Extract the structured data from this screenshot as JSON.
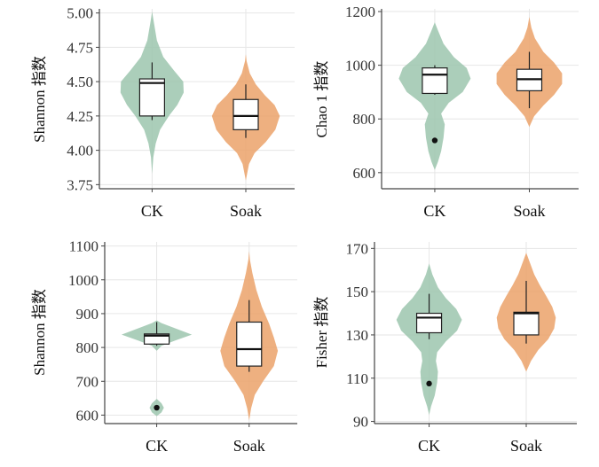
{
  "colors": {
    "CK": "#9cc5ae",
    "Soak": "#eba26a",
    "grid": "#e6e6e6",
    "axis": "#444444"
  },
  "chart_data": [
    {
      "type": "violin",
      "ylabel": "Shannon 指数",
      "categories": [
        "CK",
        "Soak"
      ],
      "yticks": [
        3.75,
        4.0,
        4.25,
        4.5,
        4.75,
        5.0
      ],
      "tick_labels": [
        "3.75",
        "4.00",
        "4.25",
        "4.50",
        "4.75",
        "5.00"
      ],
      "ylim": [
        3.72,
        5.03
      ],
      "series": [
        {
          "name": "CK",
          "box": {
            "min": 4.22,
            "q1": 4.25,
            "median": 4.49,
            "q3": 4.52,
            "max": 4.64
          },
          "outliers": [],
          "density": [
            [
              3.83,
              0.0
            ],
            [
              3.95,
              0.03
            ],
            [
              4.05,
              0.09
            ],
            [
              4.15,
              0.2
            ],
            [
              4.25,
              0.42
            ],
            [
              4.33,
              0.63
            ],
            [
              4.42,
              0.79
            ],
            [
              4.5,
              0.78
            ],
            [
              4.58,
              0.55
            ],
            [
              4.68,
              0.28
            ],
            [
              4.8,
              0.12
            ],
            [
              4.92,
              0.05
            ],
            [
              5.01,
              0.0
            ]
          ]
        },
        {
          "name": "Soak",
          "box": {
            "min": 4.09,
            "q1": 4.15,
            "median": 4.25,
            "q3": 4.37,
            "max": 4.48
          },
          "outliers": [],
          "density": [
            [
              3.78,
              0.0
            ],
            [
              3.9,
              0.08
            ],
            [
              3.98,
              0.22
            ],
            [
              4.06,
              0.5
            ],
            [
              4.15,
              0.74
            ],
            [
              4.25,
              0.85
            ],
            [
              4.33,
              0.72
            ],
            [
              4.4,
              0.48
            ],
            [
              4.48,
              0.25
            ],
            [
              4.56,
              0.1
            ],
            [
              4.65,
              0.02
            ],
            [
              4.7,
              0.0
            ]
          ]
        }
      ]
    },
    {
      "type": "violin",
      "ylabel": "Chao 1 指数",
      "categories": [
        "CK",
        "Soak"
      ],
      "yticks": [
        600,
        800,
        1000,
        1200
      ],
      "tick_labels": [
        "600",
        "800",
        "1000",
        "1200"
      ],
      "ylim": [
        540,
        1210
      ],
      "series": [
        {
          "name": "CK",
          "box": {
            "min": 890,
            "q1": 895,
            "median": 965,
            "q3": 990,
            "max": 1000
          },
          "outliers": [
            720
          ],
          "density": [
            [
              610,
              0.0
            ],
            [
              640,
              0.08
            ],
            [
              680,
              0.16
            ],
            [
              730,
              0.22
            ],
            [
              780,
              0.25
            ],
            [
              820,
              0.16
            ],
            [
              860,
              0.35
            ],
            [
              900,
              0.7
            ],
            [
              950,
              0.9
            ],
            [
              990,
              0.8
            ],
            [
              1030,
              0.48
            ],
            [
              1080,
              0.22
            ],
            [
              1130,
              0.08
            ],
            [
              1160,
              0.0
            ]
          ]
        },
        {
          "name": "Soak",
          "box": {
            "min": 840,
            "q1": 905,
            "median": 948,
            "q3": 985,
            "max": 1050
          },
          "outliers": [],
          "density": [
            [
              770,
              0.0
            ],
            [
              810,
              0.12
            ],
            [
              850,
              0.35
            ],
            [
              890,
              0.62
            ],
            [
              930,
              0.82
            ],
            [
              970,
              0.82
            ],
            [
              1010,
              0.62
            ],
            [
              1050,
              0.35
            ],
            [
              1100,
              0.14
            ],
            [
              1140,
              0.05
            ],
            [
              1180,
              0.0
            ]
          ]
        }
      ]
    },
    {
      "type": "violin",
      "ylabel": "Shannon 指数",
      "categories": [
        "CK",
        "Soak"
      ],
      "yticks": [
        600,
        700,
        800,
        900,
        1000,
        1100
      ],
      "tick_labels": [
        "600",
        "700",
        "800",
        "900",
        "1000",
        "1100"
      ],
      "ylim": [
        575,
        1112
      ],
      "series": [
        {
          "name": "CK",
          "box": {
            "min": 805,
            "q1": 810,
            "median": 835,
            "q3": 840,
            "max": 875
          },
          "outliers": [
            622
          ],
          "density": [
            [
              597,
              0.0
            ],
            [
              608,
              0.12
            ],
            [
              622,
              0.18
            ],
            [
              635,
              0.12
            ],
            [
              648,
              0.0
            ],
            [
              790,
              0.0
            ],
            [
              805,
              0.12
            ],
            [
              820,
              0.45
            ],
            [
              838,
              0.88
            ],
            [
              855,
              0.5
            ],
            [
              872,
              0.12
            ],
            [
              880,
              0.0
            ]
          ]
        },
        {
          "name": "Soak",
          "box": {
            "min": 728,
            "q1": 745,
            "median": 795,
            "q3": 875,
            "max": 940
          },
          "outliers": [],
          "density": [
            [
              585,
              0.0
            ],
            [
              620,
              0.05
            ],
            [
              660,
              0.14
            ],
            [
              700,
              0.35
            ],
            [
              745,
              0.62
            ],
            [
              790,
              0.72
            ],
            [
              830,
              0.62
            ],
            [
              870,
              0.5
            ],
            [
              920,
              0.32
            ],
            [
              970,
              0.18
            ],
            [
              1020,
              0.08
            ],
            [
              1060,
              0.02
            ],
            [
              1085,
              0.0
            ]
          ]
        }
      ]
    },
    {
      "type": "violin",
      "ylabel": "Fisher 指数",
      "categories": [
        "CK",
        "Soak"
      ],
      "yticks": [
        90,
        110,
        130,
        150,
        170
      ],
      "tick_labels": [
        "90",
        "110",
        "130",
        "150",
        "170"
      ],
      "ylim": [
        89,
        173
      ],
      "series": [
        {
          "name": "CK",
          "box": {
            "min": 128,
            "q1": 131,
            "median": 138,
            "q3": 140,
            "max": 149
          },
          "outliers": [
            107.5
          ],
          "density": [
            [
              93,
              0.0
            ],
            [
              97,
              0.05
            ],
            [
              102,
              0.14
            ],
            [
              108,
              0.2
            ],
            [
              113,
              0.22
            ],
            [
              118,
              0.17
            ],
            [
              122,
              0.2
            ],
            [
              127,
              0.42
            ],
            [
              132,
              0.7
            ],
            [
              137,
              0.82
            ],
            [
              142,
              0.68
            ],
            [
              147,
              0.42
            ],
            [
              152,
              0.22
            ],
            [
              158,
              0.08
            ],
            [
              163,
              0.0
            ]
          ]
        },
        {
          "name": "Soak",
          "box": {
            "min": 126,
            "q1": 130,
            "median": 140,
            "q3": 140.5,
            "max": 155
          },
          "outliers": [],
          "density": [
            [
              113,
              0.0
            ],
            [
              118,
              0.12
            ],
            [
              123,
              0.3
            ],
            [
              128,
              0.55
            ],
            [
              133,
              0.7
            ],
            [
              138,
              0.74
            ],
            [
              143,
              0.65
            ],
            [
              148,
              0.5
            ],
            [
              153,
              0.34
            ],
            [
              158,
              0.2
            ],
            [
              163,
              0.1
            ],
            [
              168,
              0.0
            ]
          ]
        }
      ]
    }
  ]
}
